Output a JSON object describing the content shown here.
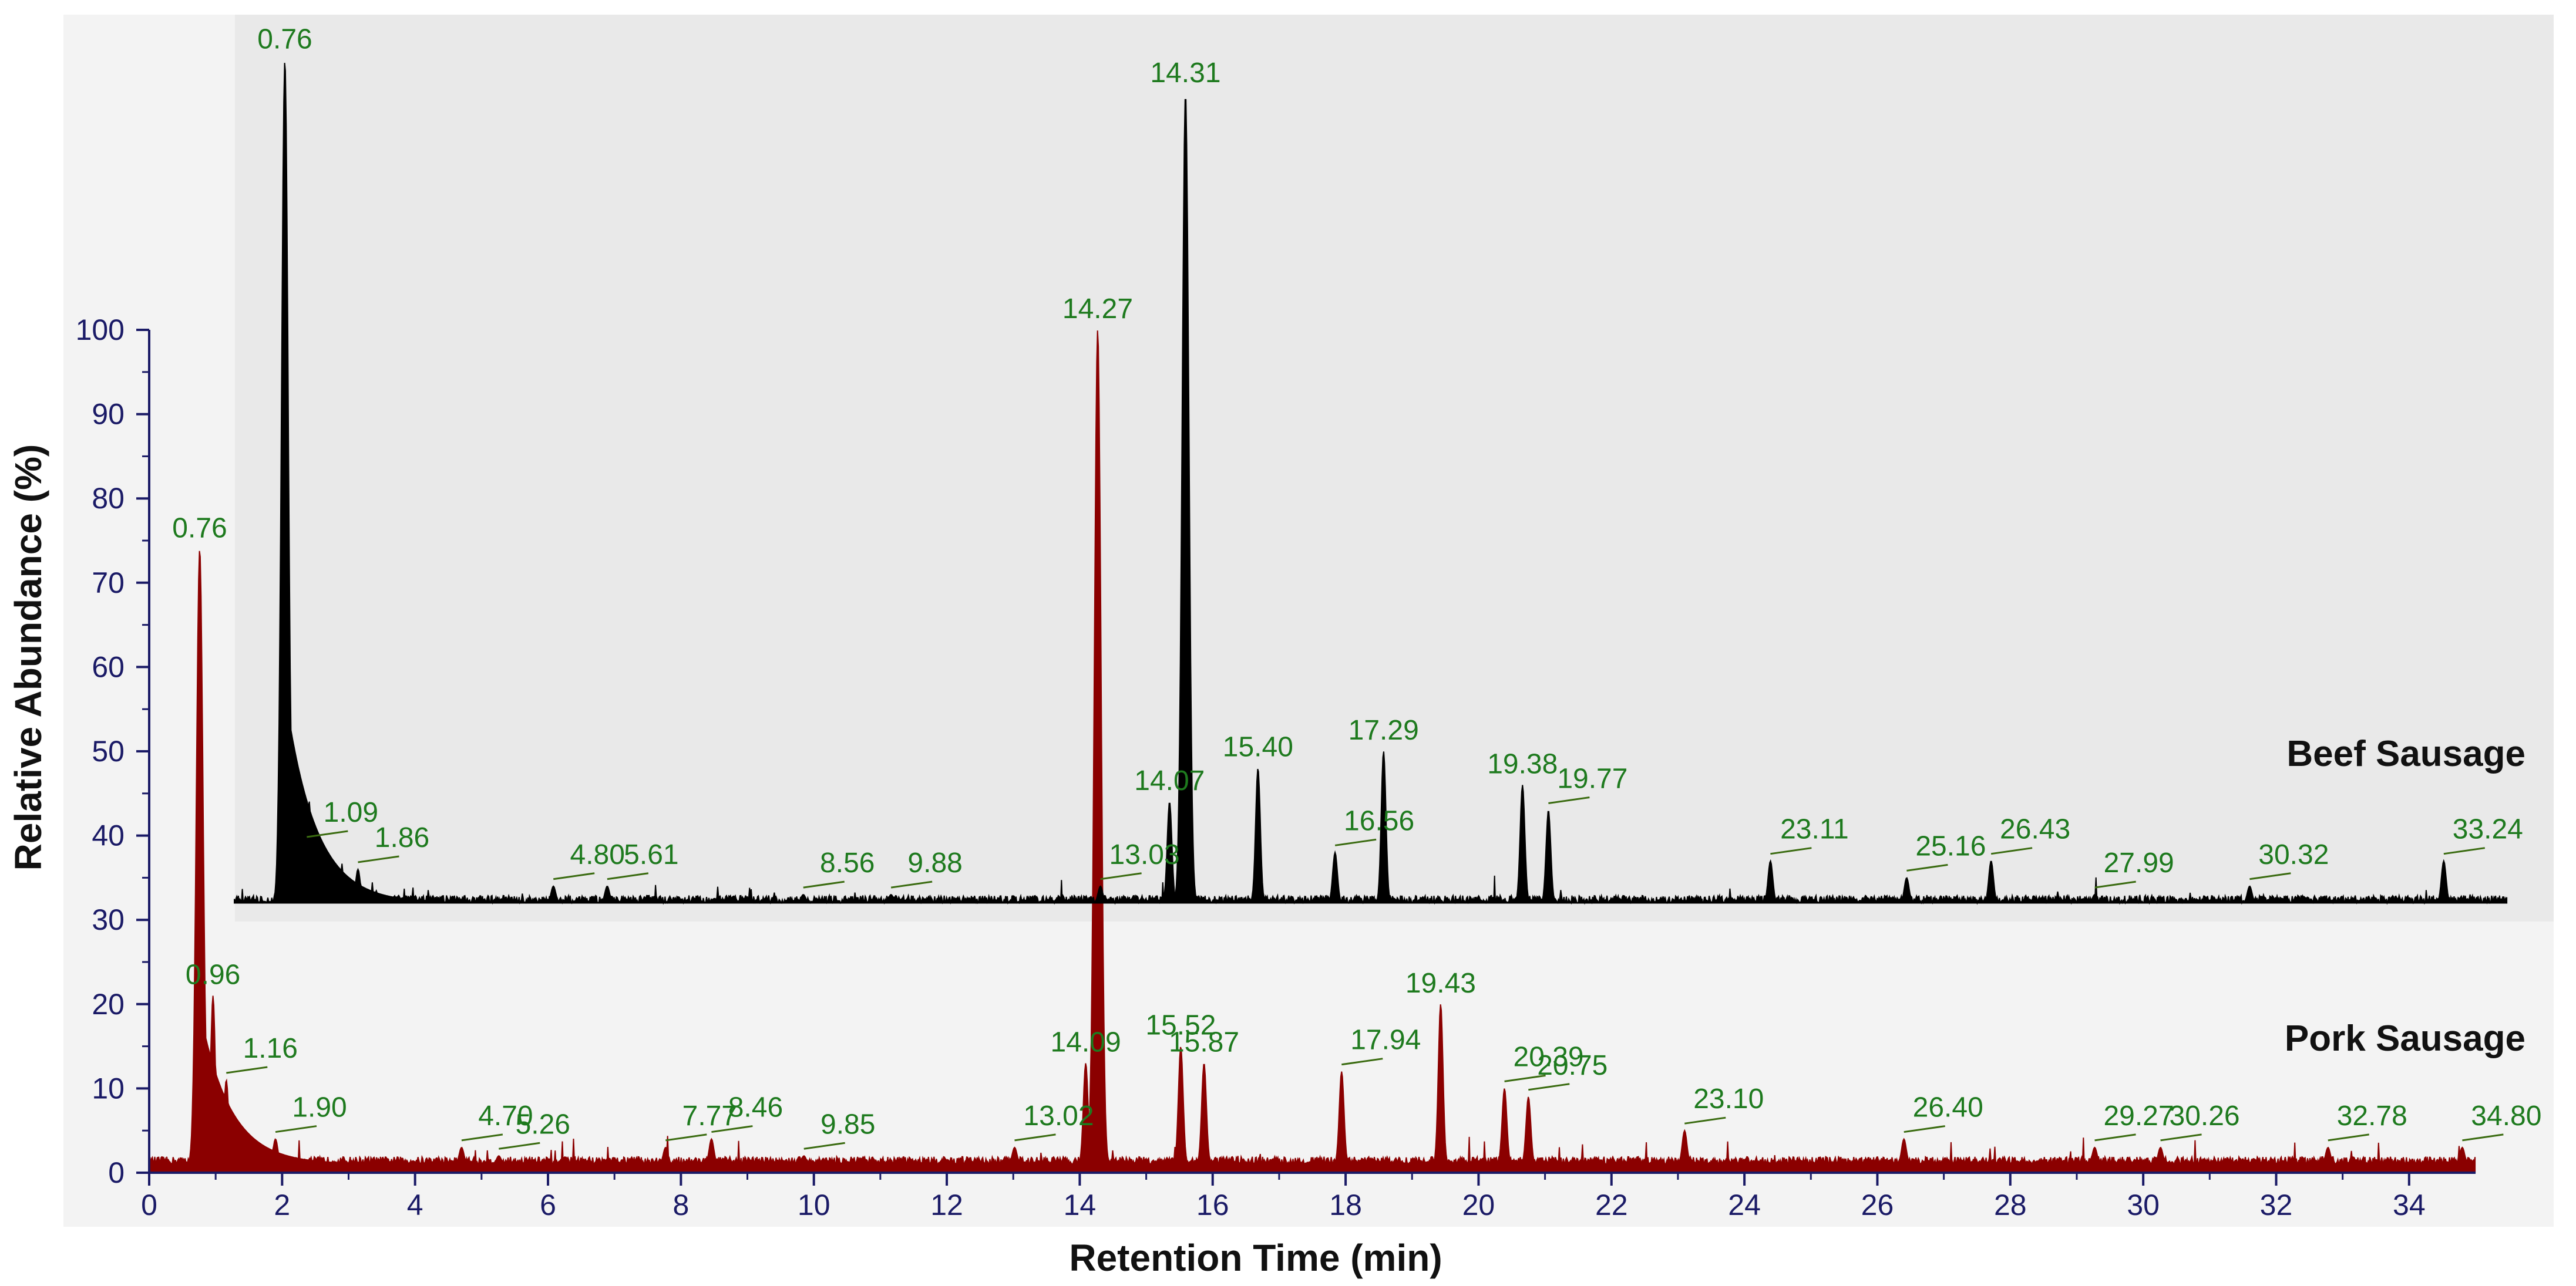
{
  "chart_data": {
    "type": "line",
    "xlabel": "Retention Time (min)",
    "ylabel": "Relative Abundance (%)",
    "xlim": [
      0,
      35
    ],
    "ylim": [
      0,
      100
    ],
    "x_ticks": [
      "0",
      "2",
      "4",
      "6",
      "8",
      "10",
      "12",
      "14",
      "16",
      "18",
      "20",
      "22",
      "24",
      "26",
      "28",
      "30",
      "32",
      "34"
    ],
    "y_ticks": [
      "0",
      "10",
      "20",
      "30",
      "40",
      "50",
      "60",
      "70",
      "80",
      "90",
      "100"
    ],
    "colors": {
      "beef": "#000000",
      "pork": "#8b0000",
      "peak_label": "#1e7a1e",
      "axis": "#1a1a66"
    },
    "series": [
      {
        "name": "Beef Sausage",
        "offset_y": 32,
        "baseline": 32,
        "peaks": [
          {
            "x": 0.76,
            "label": "0.76",
            "y": 132
          },
          {
            "x": 1.09,
            "label": "1.09",
            "y": 39
          },
          {
            "x": 1.86,
            "label": "1.86",
            "y": 36
          },
          {
            "x": 4.8,
            "label": "4.80",
            "y": 34
          },
          {
            "x": 5.61,
            "label": "5.61",
            "y": 34
          },
          {
            "x": 8.56,
            "label": "8.56",
            "y": 33
          },
          {
            "x": 9.88,
            "label": "9.88",
            "y": 33
          },
          {
            "x": 13.03,
            "label": "13.03",
            "y": 34
          },
          {
            "x": 14.07,
            "label": "14.07",
            "y": 44
          },
          {
            "x": 14.31,
            "label": "14.31",
            "y": 128
          },
          {
            "x": 15.4,
            "label": "15.40",
            "y": 48
          },
          {
            "x": 16.56,
            "label": "16.56",
            "y": 38
          },
          {
            "x": 17.29,
            "label": "17.29",
            "y": 50
          },
          {
            "x": 19.38,
            "label": "19.38",
            "y": 46
          },
          {
            "x": 19.77,
            "label": "19.77",
            "y": 43
          },
          {
            "x": 23.11,
            "label": "23.11",
            "y": 37
          },
          {
            "x": 25.16,
            "label": "25.16",
            "y": 35
          },
          {
            "x": 26.43,
            "label": "26.43",
            "y": 37
          },
          {
            "x": 27.99,
            "label": "27.99",
            "y": 33
          },
          {
            "x": 30.32,
            "label": "30.32",
            "y": 34
          },
          {
            "x": 33.24,
            "label": "33.24",
            "y": 37
          }
        ]
      },
      {
        "name": "Pork Sausage",
        "offset_y": 0,
        "baseline": 1,
        "peaks": [
          {
            "x": 0.76,
            "label": "0.76",
            "y": 74
          },
          {
            "x": 0.96,
            "label": "0.96",
            "y": 21
          },
          {
            "x": 1.16,
            "label": "1.16",
            "y": 11
          },
          {
            "x": 1.9,
            "label": "1.90",
            "y": 4
          },
          {
            "x": 4.7,
            "label": "4.70",
            "y": 3
          },
          {
            "x": 5.26,
            "label": "5.26",
            "y": 2
          },
          {
            "x": 7.77,
            "label": "7.77",
            "y": 3
          },
          {
            "x": 8.46,
            "label": "8.46",
            "y": 4
          },
          {
            "x": 9.85,
            "label": "9.85",
            "y": 2
          },
          {
            "x": 13.02,
            "label": "13.02",
            "y": 3
          },
          {
            "x": 14.09,
            "label": "14.09",
            "y": 13
          },
          {
            "x": 14.27,
            "label": "14.27",
            "y": 100
          },
          {
            "x": 15.52,
            "label": "15.52",
            "y": 15
          },
          {
            "x": 15.87,
            "label": "15.87",
            "y": 13
          },
          {
            "x": 17.94,
            "label": "17.94",
            "y": 12
          },
          {
            "x": 19.43,
            "label": "19.43",
            "y": 20
          },
          {
            "x": 20.39,
            "label": "20.39",
            "y": 10
          },
          {
            "x": 20.75,
            "label": "20.75",
            "y": 9
          },
          {
            "x": 23.1,
            "label": "23.10",
            "y": 5
          },
          {
            "x": 26.4,
            "label": "26.40",
            "y": 4
          },
          {
            "x": 29.27,
            "label": "29.27",
            "y": 3
          },
          {
            "x": 30.26,
            "label": "30.26",
            "y": 3
          },
          {
            "x": 32.78,
            "label": "32.78",
            "y": 3
          },
          {
            "x": 34.8,
            "label": "34.80",
            "y": 3
          }
        ]
      }
    ]
  }
}
